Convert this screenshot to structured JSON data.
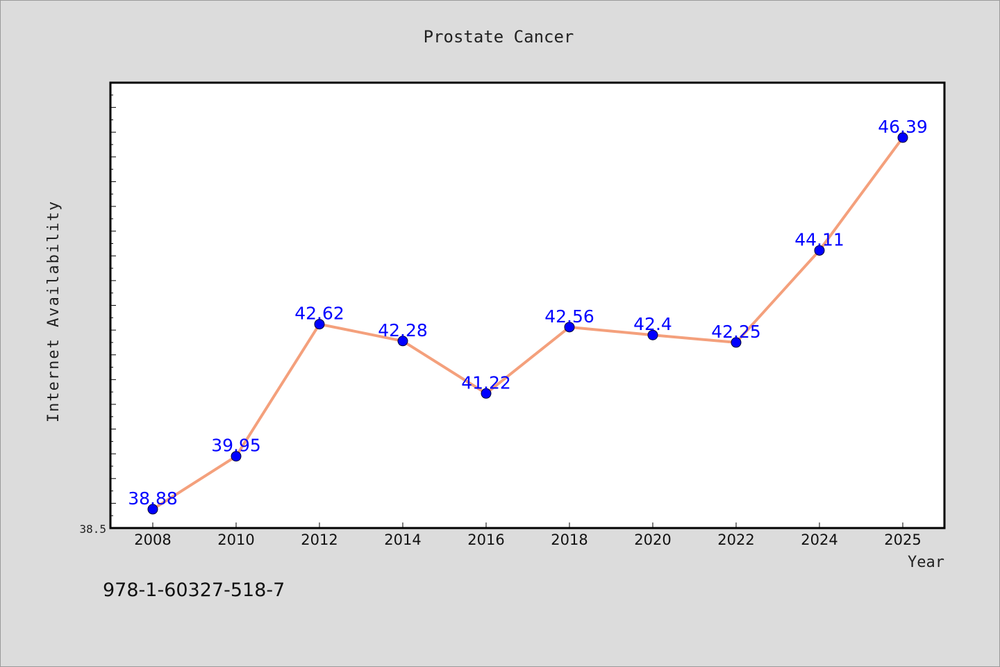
{
  "chart_data": {
    "type": "line",
    "title": "Prostate Cancer",
    "xlabel": "Year",
    "ylabel": "Internet Availability",
    "categories": [
      "2008",
      "2010",
      "2012",
      "2014",
      "2016",
      "2018",
      "2020",
      "2022",
      "2024",
      "2025"
    ],
    "series": [
      {
        "values": [
          38.88,
          39.95,
          42.62,
          42.28,
          41.22,
          42.56,
          42.4,
          42.25,
          44.11,
          46.39
        ]
      }
    ],
    "data_labels": [
      "38.88",
      "39.95",
      "42.62",
      "42.28",
      "41.22",
      "42.56",
      "42.4",
      "42.25",
      "44.11",
      "46.39"
    ],
    "y_tick_labels": [
      "38.5"
    ],
    "ylim": [
      38.5,
      47.5
    ],
    "grid": false,
    "line_color": "#f4a07c",
    "marker_color": "#0000ff",
    "label_color": "#0000ff"
  },
  "footer_text": "978-1-60327-518-7"
}
